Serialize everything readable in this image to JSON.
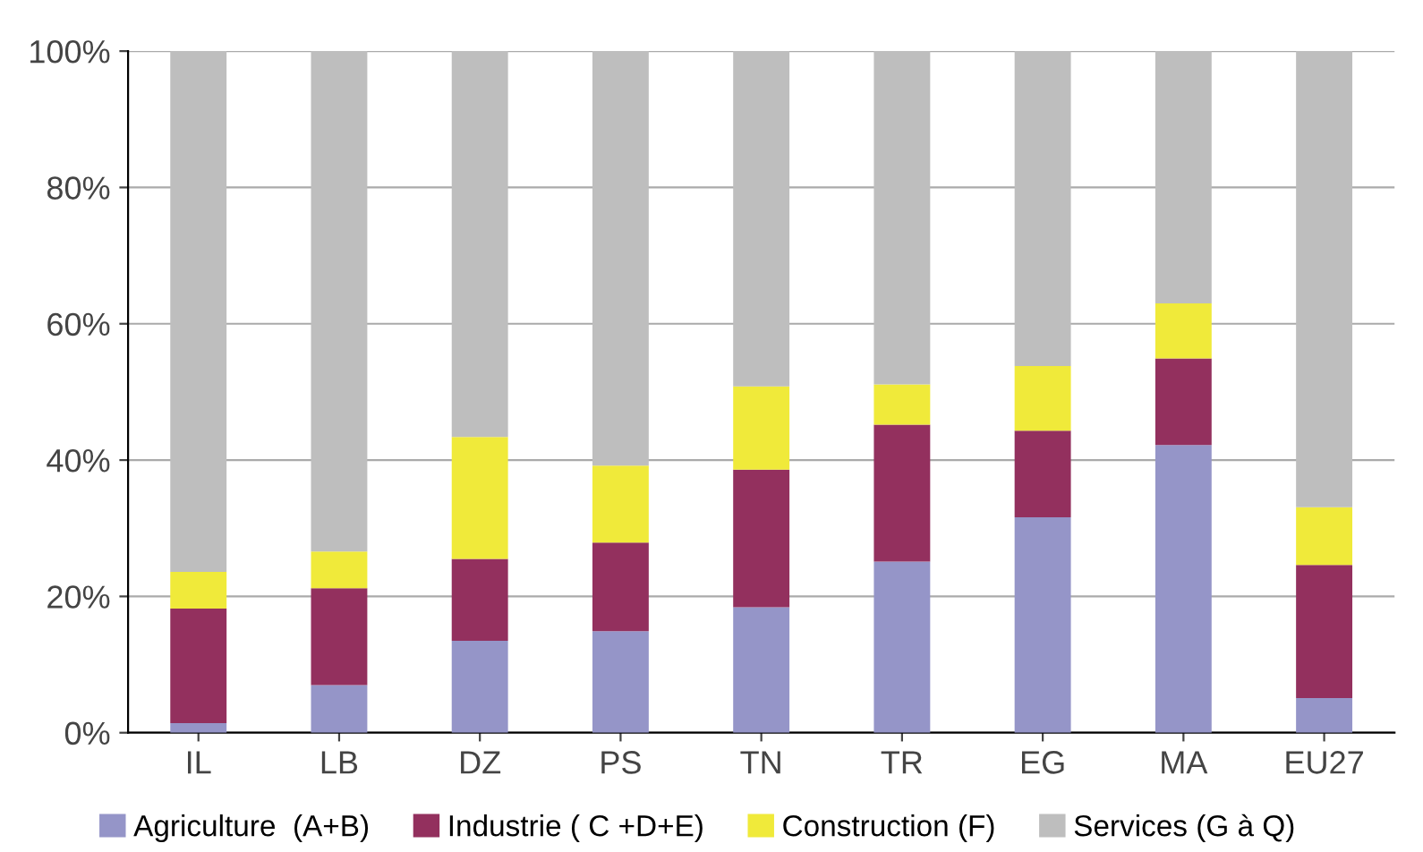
{
  "chart_data": {
    "type": "bar",
    "stacked": true,
    "categories": [
      "IL",
      "LB",
      "DZ",
      "PS",
      "TN",
      "TR",
      "EG",
      "MA",
      "EU27"
    ],
    "series": [
      {
        "name": "Agriculture  (A+B)",
        "color": "#9595c8",
        "values": [
          1.4,
          7.0,
          13.5,
          14.9,
          18.4,
          25.1,
          31.6,
          42.2,
          5.1
        ]
      },
      {
        "name": "Industrie ( C +D+E)",
        "color": "#93305e",
        "values": [
          16.8,
          14.2,
          12.0,
          13.0,
          20.2,
          20.1,
          12.7,
          12.7,
          19.5
        ]
      },
      {
        "name": "Construction (F)",
        "color": "#f0ea3a",
        "values": [
          5.4,
          5.4,
          17.9,
          11.3,
          12.2,
          5.9,
          9.5,
          8.1,
          8.5
        ]
      },
      {
        "name": "Services (G à Q)",
        "color": "#bebebe",
        "values": [
          76.4,
          73.4,
          56.6,
          60.8,
          49.2,
          48.9,
          46.2,
          37.0,
          66.9
        ]
      }
    ],
    "ylim": [
      0,
      100
    ],
    "yticks": [
      {
        "value": 0,
        "label": "0%"
      },
      {
        "value": 20,
        "label": "20%"
      },
      {
        "value": 40,
        "label": "40%"
      },
      {
        "value": 60,
        "label": "60%"
      },
      {
        "value": 80,
        "label": "80%"
      },
      {
        "value": 100,
        "label": "100%"
      }
    ],
    "grid": "y",
    "legend": "bottom"
  }
}
